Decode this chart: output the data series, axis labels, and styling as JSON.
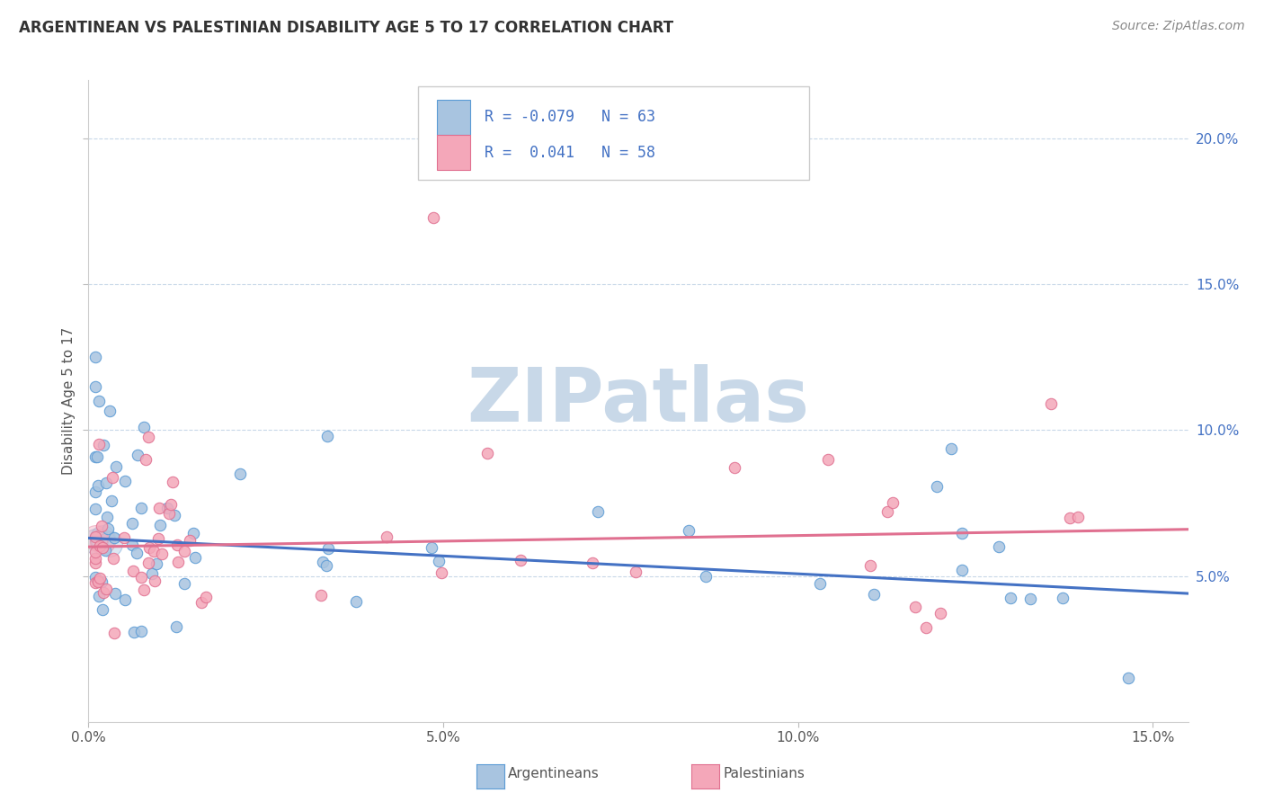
{
  "title": "ARGENTINEAN VS PALESTINIAN DISABILITY AGE 5 TO 17 CORRELATION CHART",
  "source_text": "Source: ZipAtlas.com",
  "ylabel": "Disability Age 5 to 17",
  "xlim": [
    0.0,
    0.155
  ],
  "ylim": [
    0.0,
    0.22
  ],
  "xtick_vals": [
    0.0,
    0.05,
    0.1,
    0.15
  ],
  "xtick_labels": [
    "0.0%",
    "5.0%",
    "10.0%",
    "15.0%"
  ],
  "ytick_vals": [
    0.05,
    0.1,
    0.15,
    0.2
  ],
  "ytick_labels_right": [
    "5.0%",
    "10.0%",
    "15.0%",
    "20.0%"
  ],
  "legend_label_1": "Argentineans",
  "legend_label_2": "Palestinians",
  "R1": "-0.079",
  "N1": "63",
  "R2": " 0.041",
  "N2": "58",
  "color_blue_fill": "#A8C4E0",
  "color_blue_edge": "#5B9BD5",
  "color_pink_fill": "#F4A7B9",
  "color_pink_edge": "#E07090",
  "color_blue_line": "#4472C4",
  "color_pink_line": "#E07090",
  "color_text_title": "#333333",
  "color_text_blue": "#4472C4",
  "color_source": "#888888",
  "color_grid": "#C8D8E8",
  "watermark_color": "#C8D8E8",
  "background_color": "#FFFFFF",
  "arg_trend_x0": 0.0,
  "arg_trend_y0": 0.063,
  "arg_trend_x1": 0.155,
  "arg_trend_y1": 0.044,
  "pal_trend_x0": 0.0,
  "pal_trend_y0": 0.06,
  "pal_trend_x1": 0.155,
  "pal_trend_y1": 0.066
}
